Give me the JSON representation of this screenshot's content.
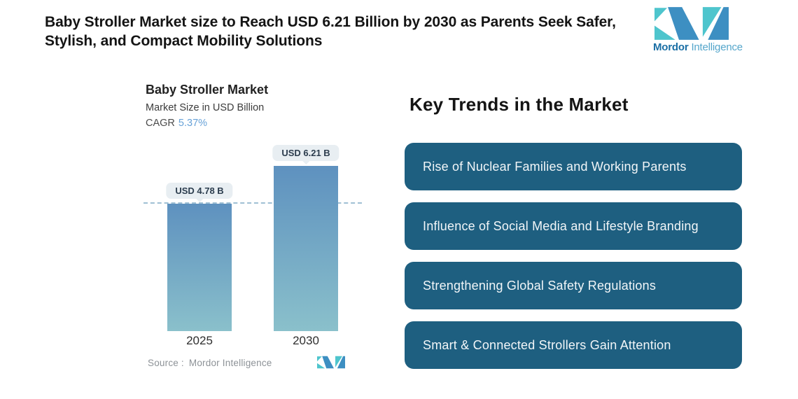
{
  "header": {
    "title_line1": "Baby Stroller Market size to Reach USD 6.21 Billion by 2030 as Parents Seek Safer,",
    "title_line2": "Stylish, and Compact Mobility Solutions"
  },
  "brand": {
    "name_bold": "Mordor",
    "name_light": "Intelligence"
  },
  "chart": {
    "title": "Baby Stroller Market",
    "subtitle": "Market Size in USD Billion",
    "cagr_label": "CAGR",
    "cagr_value": "5.37%",
    "source_label": "Source :",
    "source_value": "Mordor Intelligence"
  },
  "chart_data": {
    "type": "bar",
    "title": "Baby Stroller Market",
    "ylabel": "Market Size in USD Billion",
    "cagr": "5.37%",
    "categories": [
      "2025",
      "2030"
    ],
    "values": [
      4.78,
      6.21
    ],
    "value_labels": [
      "USD 4.78 B",
      "USD 6.21 B"
    ],
    "units": "USD Billion",
    "ylim": [
      0,
      7.18
    ],
    "grid": false,
    "reference_line_at": 4.78,
    "reference_line_style": "dashed",
    "bar_gradient": [
      "#5e91bf",
      "#8ac0cb"
    ],
    "legend": null
  },
  "trends": {
    "heading": "Key Trends in the Market",
    "items": [
      "Rise of Nuclear Families and Working Parents",
      "Influence of Social Media and Lifestyle Branding",
      "Strengthening Global Safety Regulations",
      "Smart & Connected Strollers Gain Attention"
    ]
  },
  "colors": {
    "pill_bg": "#1e5f80",
    "pill_text": "#f2f6f8",
    "callout_bg": "#e8eef2",
    "callout_text": "#2c3d4e",
    "dashed_line": "#9fc0d4",
    "cagr_value": "#68a2d8",
    "source_text": "#8d9297",
    "brand_teal": "#4ec5cd",
    "brand_blue": "#3d8fc2",
    "brand_text_bold": "#1b6fa5",
    "brand_text_light": "#55a6cb",
    "heading_text": "#141414"
  }
}
